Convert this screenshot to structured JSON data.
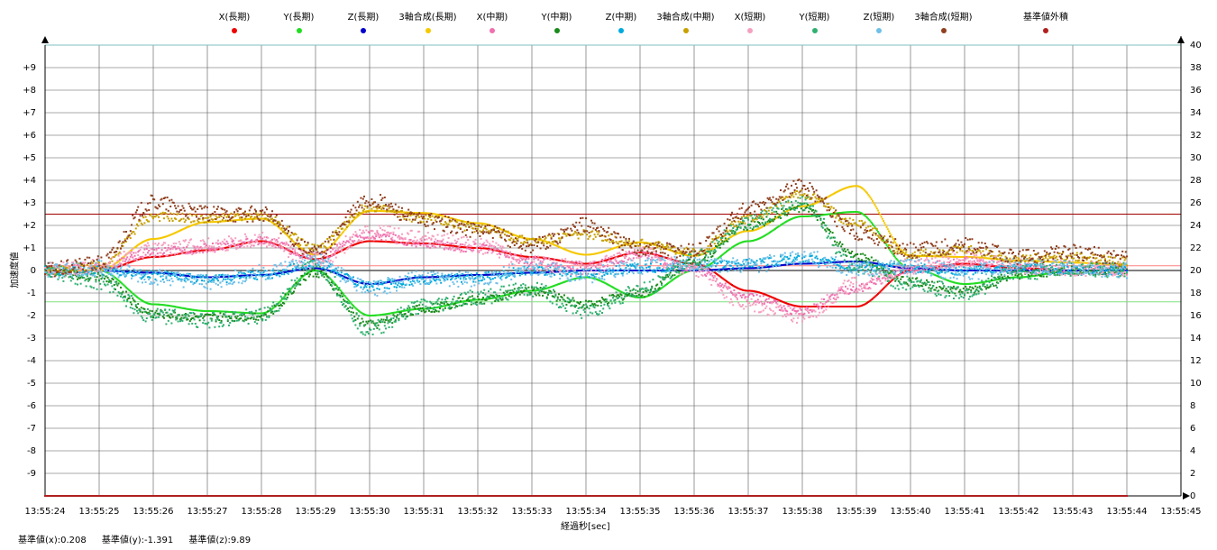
{
  "chart_data": {
    "type": "scatter",
    "xlabel": "経過秒[sec]",
    "ylabel": "加速度値",
    "x_ticks": [
      "13:55:24",
      "13:55:25",
      "13:55:26",
      "13:55:27",
      "13:55:28",
      "13:55:29",
      "13:55:30",
      "13:55:31",
      "13:55:32",
      "13:55:33",
      "13:55:34",
      "13:55:35",
      "13:55:36",
      "13:55:37",
      "13:55:38",
      "13:55:39",
      "13:55:40",
      "13:55:41",
      "13:55:42",
      "13:55:43",
      "13:55:44",
      "13:55:45"
    ],
    "x_range_sec": [
      0,
      21
    ],
    "y_left_ticks": [
      "+9",
      "+8",
      "+7",
      "+6",
      "+5",
      "+4",
      "+3",
      "+2",
      "+1",
      "0",
      "-1",
      "-2",
      "-3",
      "-4",
      "-5",
      "-6",
      "-7",
      "-8",
      "-9"
    ],
    "y_left_range": [
      -10,
      10
    ],
    "y_right_ticks": [
      "40",
      "38",
      "36",
      "34",
      "32",
      "30",
      "28",
      "26",
      "24",
      "22",
      "20",
      "18",
      "16",
      "14",
      "12",
      "10",
      "8",
      "6",
      "4",
      "2",
      "0"
    ],
    "y_right_range": [
      0,
      40
    ],
    "grid": true,
    "reference_lines": [
      {
        "y": 2.5,
        "color": "#a00000"
      },
      {
        "y": 0.208,
        "color": "#ff8080"
      },
      {
        "y": -1.391,
        "color": "#80e080"
      },
      {
        "y": 10,
        "color": "#80c0c0"
      }
    ],
    "series": [
      {
        "name": "X(長期)",
        "color": "#ee0000",
        "axis": "left",
        "x": [
          0,
          1,
          2,
          3,
          4,
          5,
          6,
          7,
          8,
          9,
          10,
          11,
          12,
          13,
          14,
          15,
          16,
          17,
          18,
          19,
          20
        ],
        "y": [
          0,
          0,
          0.6,
          0.9,
          1.3,
          0.5,
          1.3,
          1.2,
          1.0,
          0.6,
          0.3,
          0.8,
          0.3,
          -0.9,
          -1.6,
          -1.6,
          0,
          0.3,
          0.1,
          0,
          0
        ]
      },
      {
        "name": "Y(長期)",
        "color": "#22dd22",
        "axis": "left",
        "x": [
          0,
          1,
          2,
          3,
          4,
          5,
          6,
          7,
          8,
          9,
          10,
          11,
          12,
          13,
          14,
          15,
          16,
          17,
          18,
          19,
          20
        ],
        "y": [
          0,
          0,
          -1.5,
          -1.8,
          -1.9,
          0,
          -2.0,
          -1.7,
          -1.3,
          -0.9,
          -0.3,
          -1.2,
          0,
          1.3,
          2.4,
          2.6,
          0.1,
          -0.6,
          -0.3,
          0,
          0
        ]
      },
      {
        "name": "Z(長期)",
        "color": "#0000cc",
        "axis": "left",
        "x": [
          0,
          1,
          2,
          3,
          4,
          5,
          6,
          7,
          8,
          9,
          10,
          11,
          12,
          13,
          14,
          15,
          16,
          17,
          18,
          19,
          20
        ],
        "y": [
          0,
          0,
          -0.1,
          -0.3,
          -0.2,
          0.1,
          -0.6,
          -0.3,
          -0.2,
          -0.1,
          0,
          0,
          0,
          0.1,
          0.3,
          0.4,
          0.1,
          0,
          0,
          0,
          0
        ]
      },
      {
        "name": "3軸合成(長期)",
        "color": "#f5c800",
        "axis": "right",
        "x": [
          0,
          1,
          2,
          3,
          4,
          5,
          6,
          7,
          8,
          9,
          10,
          11,
          12,
          13,
          14,
          15,
          16,
          17,
          18,
          19,
          20
        ],
        "y": [
          20,
          20,
          22.8,
          24.3,
          24.6,
          21.4,
          25.3,
          25.1,
          24.2,
          22.8,
          21.4,
          22.5,
          21.3,
          23.5,
          25.7,
          27.5,
          21.3,
          21.2,
          20.9,
          20.7,
          20.5
        ]
      },
      {
        "name": "X(中期)",
        "color": "#f070b0",
        "axis": "left",
        "x": [
          0,
          1,
          2,
          3,
          4,
          5,
          6,
          7,
          8,
          9,
          10,
          11,
          12,
          13,
          14,
          15,
          16,
          17,
          18,
          19,
          20
        ],
        "y": [
          0,
          0.1,
          0.8,
          1.0,
          1.3,
          0.6,
          1.6,
          1.2,
          1.0,
          0.4,
          0.2,
          0.7,
          0.1,
          -1.2,
          -1.8,
          -0.8,
          0.1,
          0.4,
          0.1,
          0,
          0
        ]
      },
      {
        "name": "Y(中期)",
        "color": "#1a8a1a",
        "axis": "left",
        "x": [
          0,
          1,
          2,
          3,
          4,
          5,
          6,
          7,
          8,
          9,
          10,
          11,
          12,
          13,
          14,
          15,
          16,
          17,
          18,
          19,
          20
        ],
        "y": [
          0,
          -0.3,
          -1.9,
          -2.1,
          -2.0,
          -0.1,
          -2.4,
          -1.7,
          -1.3,
          -0.9,
          -1.5,
          -1.0,
          0.4,
          2.0,
          2.8,
          0.6,
          -0.5,
          -0.9,
          -0.2,
          0,
          0
        ]
      },
      {
        "name": "Z(中期)",
        "color": "#00aadd",
        "axis": "left",
        "x": [
          0,
          1,
          2,
          3,
          4,
          5,
          6,
          7,
          8,
          9,
          10,
          11,
          12,
          13,
          14,
          15,
          16,
          17,
          18,
          19,
          20
        ],
        "y": [
          0,
          0,
          -0.2,
          -0.4,
          -0.2,
          0.3,
          -0.7,
          -0.4,
          -0.3,
          0,
          -0.1,
          0.1,
          0.2,
          0.3,
          0.5,
          0.2,
          0.1,
          0,
          0.1,
          0,
          0
        ]
      },
      {
        "name": "3軸合成(中期)",
        "color": "#c8a000",
        "axis": "right",
        "x": [
          0,
          1,
          2,
          3,
          4,
          5,
          6,
          7,
          8,
          9,
          10,
          11,
          12,
          13,
          14,
          15,
          16,
          17,
          18,
          19,
          20
        ],
        "y": [
          20,
          20.4,
          24.8,
          24.6,
          24.8,
          22.0,
          25.6,
          24.6,
          23.8,
          22.6,
          23.2,
          22.4,
          21.6,
          24.6,
          26.8,
          24.2,
          21.4,
          21.8,
          21.0,
          21.2,
          20.8
        ]
      },
      {
        "name": "X(短期)",
        "color": "#f5a0c0",
        "axis": "left",
        "x": [
          0,
          1,
          2,
          3,
          4,
          5,
          6,
          7,
          8,
          9,
          10,
          11,
          12,
          13,
          14,
          15,
          16,
          17,
          18,
          19,
          20
        ],
        "y": [
          0,
          0.2,
          0.9,
          1.1,
          1.4,
          0.4,
          1.7,
          1.4,
          1.1,
          0.3,
          0.1,
          0.8,
          0,
          -1.5,
          -2.0,
          -0.6,
          0.2,
          0.5,
          0.2,
          0.1,
          0
        ]
      },
      {
        "name": "Y(短期)",
        "color": "#30b070",
        "axis": "left",
        "x": [
          0,
          1,
          2,
          3,
          4,
          5,
          6,
          7,
          8,
          9,
          10,
          11,
          12,
          13,
          14,
          15,
          16,
          17,
          18,
          19,
          20
        ],
        "y": [
          0,
          -0.5,
          -2.0,
          -2.2,
          -2.0,
          0.2,
          -2.6,
          -1.6,
          -1.2,
          -0.8,
          -1.8,
          -0.9,
          0.5,
          2.2,
          3.0,
          0.2,
          -0.6,
          -1.0,
          -0.1,
          0.1,
          0
        ]
      },
      {
        "name": "Z(短期)",
        "color": "#70c0e8",
        "axis": "left",
        "x": [
          0,
          1,
          2,
          3,
          4,
          5,
          6,
          7,
          8,
          9,
          10,
          11,
          12,
          13,
          14,
          15,
          16,
          17,
          18,
          19,
          20
        ],
        "y": [
          0,
          0.1,
          -0.3,
          -0.5,
          -0.1,
          0.4,
          -0.8,
          -0.3,
          -0.4,
          0.1,
          -0.2,
          0.2,
          0.3,
          0.2,
          0.6,
          0.1,
          0.2,
          -0.1,
          0.2,
          0.1,
          0
        ]
      },
      {
        "name": "3軸合成(短期)",
        "color": "#904020",
        "axis": "right",
        "x": [
          0,
          1,
          2,
          3,
          4,
          5,
          6,
          7,
          8,
          9,
          10,
          11,
          12,
          13,
          14,
          15,
          16,
          17,
          18,
          19,
          20
        ],
        "y": [
          20,
          20.6,
          26.0,
          25.0,
          25.0,
          21.6,
          26.2,
          24.4,
          23.6,
          22.2,
          24.0,
          22.0,
          21.8,
          25.4,
          27.4,
          23.4,
          21.8,
          22.2,
          21.2,
          21.6,
          21.0
        ]
      },
      {
        "name": "基準値外積",
        "color": "#b02020",
        "axis": "right",
        "x": [
          0,
          1,
          2,
          3,
          4,
          5,
          6,
          7,
          8,
          9,
          10,
          11,
          12,
          13,
          14,
          15,
          16,
          17,
          18,
          19,
          20
        ],
        "y": [
          0,
          0,
          0,
          0,
          0,
          0,
          0,
          0,
          0,
          0,
          0,
          0,
          0,
          0,
          0,
          0,
          0,
          0,
          0,
          0,
          0
        ]
      }
    ]
  },
  "baseline": {
    "x_text": "基準値(x):0.208",
    "y_text": "基準値(y):-1.391",
    "z_text": "基準値(z):9.89"
  }
}
